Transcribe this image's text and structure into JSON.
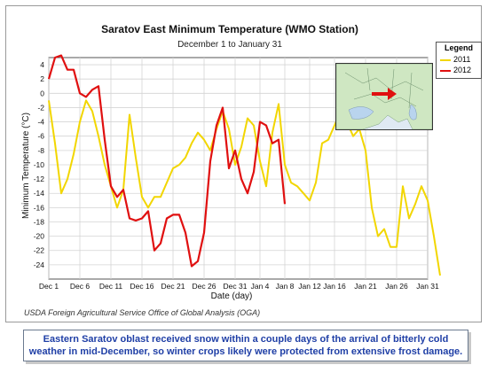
{
  "title": "Saratov East Minimum Temperature (WMO Station)",
  "subtitle": "December 1 to January 31",
  "footnote": "USDA Foreign Agricultural Service Office of Global Analysis (OGA)",
  "caption": {
    "line1": "Eastern Saratov oblast  received snow within a couple days of the arrival of bitterly cold",
    "line2": "weather in mid-December, so winter crops likely were  protected from extensive frost damage."
  },
  "legend": {
    "title": "Legend",
    "entries": [
      "2011",
      "2012"
    ]
  },
  "chart_data": {
    "type": "line",
    "title": "Saratov East Minimum Temperature (WMO Station)",
    "subtitle": "December 1 to January 31",
    "xlabel": "Date (day)",
    "ylabel": "Minimum Temperature (°C)",
    "ylim": [
      -26,
      5
    ],
    "yticks": [
      4,
      2,
      0,
      -2,
      -4,
      -6,
      -8,
      -10,
      -12,
      -14,
      -16,
      -18,
      -20,
      -22,
      -24
    ],
    "xticks": [
      {
        "day": 1,
        "label": "Dec 1"
      },
      {
        "day": 6,
        "label": "Dec 6"
      },
      {
        "day": 11,
        "label": "Dec 11"
      },
      {
        "day": 16,
        "label": "Dec 16"
      },
      {
        "day": 21,
        "label": "Dec 21"
      },
      {
        "day": 26,
        "label": "Dec 26"
      },
      {
        "day": 31,
        "label": "Dec 31"
      },
      {
        "day": 35,
        "label": "Jan 4"
      },
      {
        "day": 39,
        "label": "Jan 8"
      },
      {
        "day": 43,
        "label": "Jan 12"
      },
      {
        "day": 47,
        "label": "Jan 16"
      },
      {
        "day": 52,
        "label": "Jan 21"
      },
      {
        "day": 57,
        "label": "Jan 26"
      },
      {
        "day": 62,
        "label": "Jan 31"
      }
    ],
    "grid": true,
    "legend_position": "top-right",
    "series": [
      {
        "name": "2011",
        "color": "#f2d600",
        "values": [
          -1,
          -7,
          -14,
          -12,
          -8.5,
          -4,
          -1,
          -2.5,
          -6,
          -10,
          -13,
          -16,
          -13.5,
          -3,
          -9,
          -14.5,
          -16,
          -14.5,
          -14.5,
          -12.5,
          -10.5,
          -10,
          -9,
          -7,
          -5.5,
          -6.5,
          -8,
          -5,
          -2.5,
          -5,
          -10,
          -7.5,
          -3.5,
          -4.5,
          -9.5,
          -13,
          -5.5,
          -1.5,
          -10,
          -12.5,
          -13,
          -14,
          -15,
          -12.5,
          -7,
          -6.5,
          -4.5,
          -2.5,
          -4,
          -6,
          -5,
          -8,
          -16,
          -20,
          -19,
          -21.5,
          -21.5,
          -13,
          -17.5,
          -15.5,
          -13,
          -15,
          -20,
          -25.5
        ]
      },
      {
        "name": "2012",
        "color": "#e01010",
        "values": [
          2,
          5,
          5.3,
          3.3,
          3.3,
          0,
          -0.5,
          0.5,
          1,
          -6.5,
          -13,
          -14.5,
          -13.5,
          -17.5,
          -17.8,
          -17.5,
          -16.5,
          -22,
          -21,
          -17.5,
          -17,
          -17,
          -19.5,
          -24.2,
          -23.5,
          -19.5,
          -9.5,
          -4.5,
          -2,
          -10.5,
          -8,
          -12,
          -14,
          -11,
          -4,
          -4.5,
          -7,
          -6.5,
          -15.5
        ]
      }
    ]
  }
}
